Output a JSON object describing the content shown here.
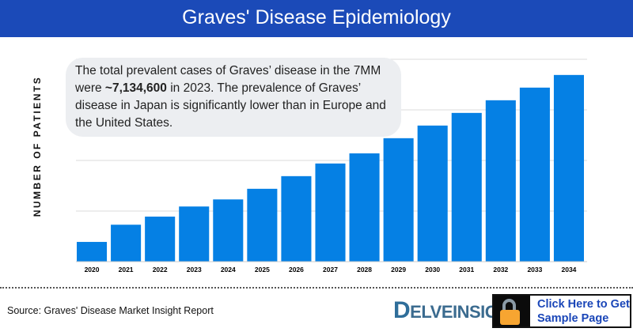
{
  "header": {
    "title": "Graves' Disease Epidemiology"
  },
  "callout": {
    "text_before": "The total prevalent cases of Graves’ disease in the 7MM were ",
    "highlight": "~7,134,600",
    "text_after": " in 2023. The prevalence of Graves’ disease in Japan is significantly lower than in Europe and the United States."
  },
  "chart_data": {
    "type": "bar",
    "title": "",
    "xlabel": "",
    "ylabel": "NUMBER OF PATIENTS",
    "categories": [
      "2020",
      "2021",
      "2022",
      "2023",
      "2024",
      "2025",
      "2026",
      "2027",
      "2028",
      "2029",
      "2030",
      "2031",
      "2032",
      "2033",
      "2034"
    ],
    "values": [
      0.39,
      0.73,
      0.89,
      1.09,
      1.23,
      1.44,
      1.69,
      1.94,
      2.14,
      2.44,
      2.69,
      2.94,
      3.19,
      3.44,
      3.69
    ],
    "value_units": "relative (y-axis tick values not printed)",
    "ylim": [
      0,
      4
    ],
    "grid": true,
    "bar_color": "#0580e4"
  },
  "footer": {
    "source": "Source: Graves' Disease Market Insight Report",
    "logo": "DELVEINSIGHT",
    "cta": "Click Here to Get Sample Page",
    "cta_line1": "Click Here to Get",
    "cta_line2": "Sample Page"
  }
}
